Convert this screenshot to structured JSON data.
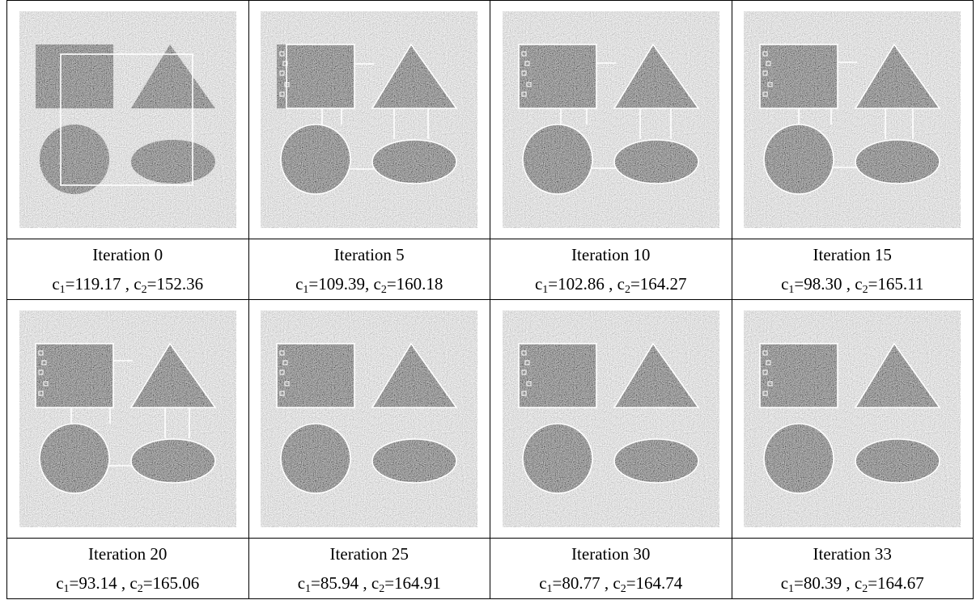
{
  "panels": [
    {
      "iteration": "Iteration 0",
      "line2": [
        "c",
        "1",
        "=119.17 , c",
        "2",
        "=152.36"
      ]
    },
    {
      "iteration": "Iteration 5",
      "line2": [
        "c",
        "1",
        "=109.39, c",
        "2",
        "=160.18"
      ]
    },
    {
      "iteration": "Iteration 10",
      "line2": [
        "c",
        "1",
        "=102.86 , c",
        "2",
        "=164.27"
      ]
    },
    {
      "iteration": "Iteration 15",
      "line2": [
        "c",
        "1",
        "=98.30 , c",
        "2",
        "=165.11"
      ]
    },
    {
      "iteration": "Iteration 20",
      "line2": [
        "c",
        "1",
        "=93.14 , c",
        "2",
        "=165.06"
      ]
    },
    {
      "iteration": "Iteration 25",
      "line2": [
        "c",
        "1",
        "=85.94 , c",
        "2",
        "=164.91"
      ]
    },
    {
      "iteration": "Iteration 30",
      "line2": [
        "c",
        "1",
        "=80.77 , c",
        "2",
        "=164.74"
      ]
    },
    {
      "iteration": "Iteration 33",
      "line2": [
        "c",
        "1",
        "=80.39 , c",
        "2",
        "=164.67"
      ]
    }
  ]
}
